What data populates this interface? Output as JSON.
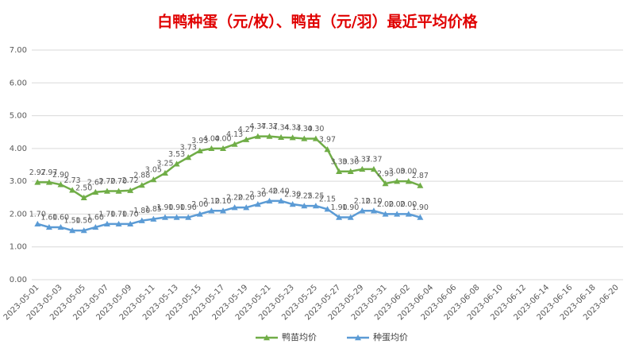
{
  "chart_data": {
    "type": "line",
    "title": "白鸭种蛋（元/枚）、鸭苗（元/羽）最近平均价格",
    "categories": [
      "2023-05-01",
      null,
      "2023-05-03",
      null,
      "2023-05-05",
      null,
      "2023-05-07",
      null,
      "2023-05-09",
      null,
      "2023-05-11",
      null,
      "2023-05-13",
      null,
      "2023-05-15",
      null,
      "2023-05-17",
      null,
      "2023-05-19",
      null,
      "2023-05-21",
      null,
      "2023-05-23",
      null,
      "2023-05-25",
      null,
      "2023-05-27",
      null,
      "2023-05-29",
      null,
      "2023-05-31",
      null,
      "2023-06-02",
      null,
      "2023-06-04",
      null,
      "2023-06-06",
      null,
      "2023-06-08",
      null,
      "2023-06-10",
      null,
      "2023-06-12",
      null,
      "2023-06-14",
      null,
      "2023-06-16",
      null,
      "2023-06-18",
      null,
      "2023-06-20"
    ],
    "series": [
      {
        "name": "鸭苗均价",
        "color": "#70ad47",
        "values": [
          2.97,
          2.97,
          2.9,
          2.73,
          2.5,
          2.67,
          2.7,
          2.7,
          2.72,
          2.88,
          3.05,
          3.25,
          3.53,
          3.73,
          3.93,
          4.0,
          4.0,
          4.13,
          4.27,
          4.37,
          4.37,
          4.34,
          4.33,
          4.3,
          4.3,
          3.97,
          3.3,
          3.3,
          3.37,
          3.37,
          2.93,
          3.0,
          3.0,
          2.87,
          null,
          null,
          null,
          null,
          null,
          null,
          null,
          null,
          null,
          null,
          null,
          null,
          null,
          null,
          null,
          null,
          null
        ],
        "value_labels": [
          "2.97",
          "2.97",
          "2.90",
          "2.73",
          "2.50",
          "2.67",
          "2.70",
          "2.70",
          "2.72",
          "2.88",
          "3.05",
          "3.25",
          "3.53",
          "3.73",
          "3.93",
          "4.00",
          "4.00",
          "4.13",
          "4.27",
          "4.37",
          "4.37",
          "4.34",
          "4.33",
          "4.30",
          "4.30",
          "3.97",
          "3.30",
          "3.30",
          "3.37",
          "3.37",
          "2.93",
          "3.00",
          "3.00",
          "2.87",
          null,
          null,
          null,
          null,
          null,
          null,
          null,
          null,
          null,
          null,
          null,
          null,
          null,
          null,
          null,
          null,
          null
        ]
      },
      {
        "name": "种蛋均价",
        "color": "#5b9bd5",
        "values": [
          1.7,
          1.6,
          1.6,
          1.5,
          1.5,
          1.6,
          1.7,
          1.7,
          1.7,
          1.8,
          1.85,
          1.9,
          1.9,
          1.9,
          2.0,
          2.1,
          2.1,
          2.2,
          2.2,
          2.3,
          2.4,
          2.4,
          2.3,
          2.25,
          2.25,
          2.15,
          1.9,
          1.9,
          2.1,
          2.1,
          2.0,
          2.0,
          2.0,
          1.9,
          null,
          null,
          null,
          null,
          null,
          null,
          null,
          null,
          null,
          null,
          null,
          null,
          null,
          null,
          null,
          null,
          null
        ],
        "value_labels": [
          "1.70",
          "1.60",
          "1.60",
          "1.50",
          "1.50",
          "1.60",
          "1.70",
          "1.70",
          "1.70",
          "1.80",
          "1.85",
          "1.90",
          "1.90",
          "1.90",
          "2.00",
          "2.10",
          "2.10",
          "2.20",
          "2.20",
          "2.30",
          "2.40",
          "2.40",
          "2.30",
          "2.25",
          "2.25",
          "2.15",
          "1.90",
          "1.90",
          "2.10",
          "2.10",
          "2.00",
          "2.00",
          "2.00",
          "1.90",
          null,
          null,
          null,
          null,
          null,
          null,
          null,
          null,
          null,
          null,
          null,
          null,
          null,
          null,
          null,
          null,
          null
        ]
      }
    ],
    "ylim": [
      0,
      7
    ],
    "yticks": [
      {
        "value": 0,
        "label": "0.00"
      },
      {
        "value": 1,
        "label": "1.00"
      },
      {
        "value": 2,
        "label": "2.00"
      },
      {
        "value": 3,
        "label": "3.00"
      },
      {
        "value": 4,
        "label": "4.00"
      },
      {
        "value": 5,
        "label": "5.00"
      },
      {
        "value": 6,
        "label": "6.00"
      },
      {
        "value": 7,
        "label": "7.00"
      }
    ],
    "grid": true,
    "legend": "bottom"
  }
}
